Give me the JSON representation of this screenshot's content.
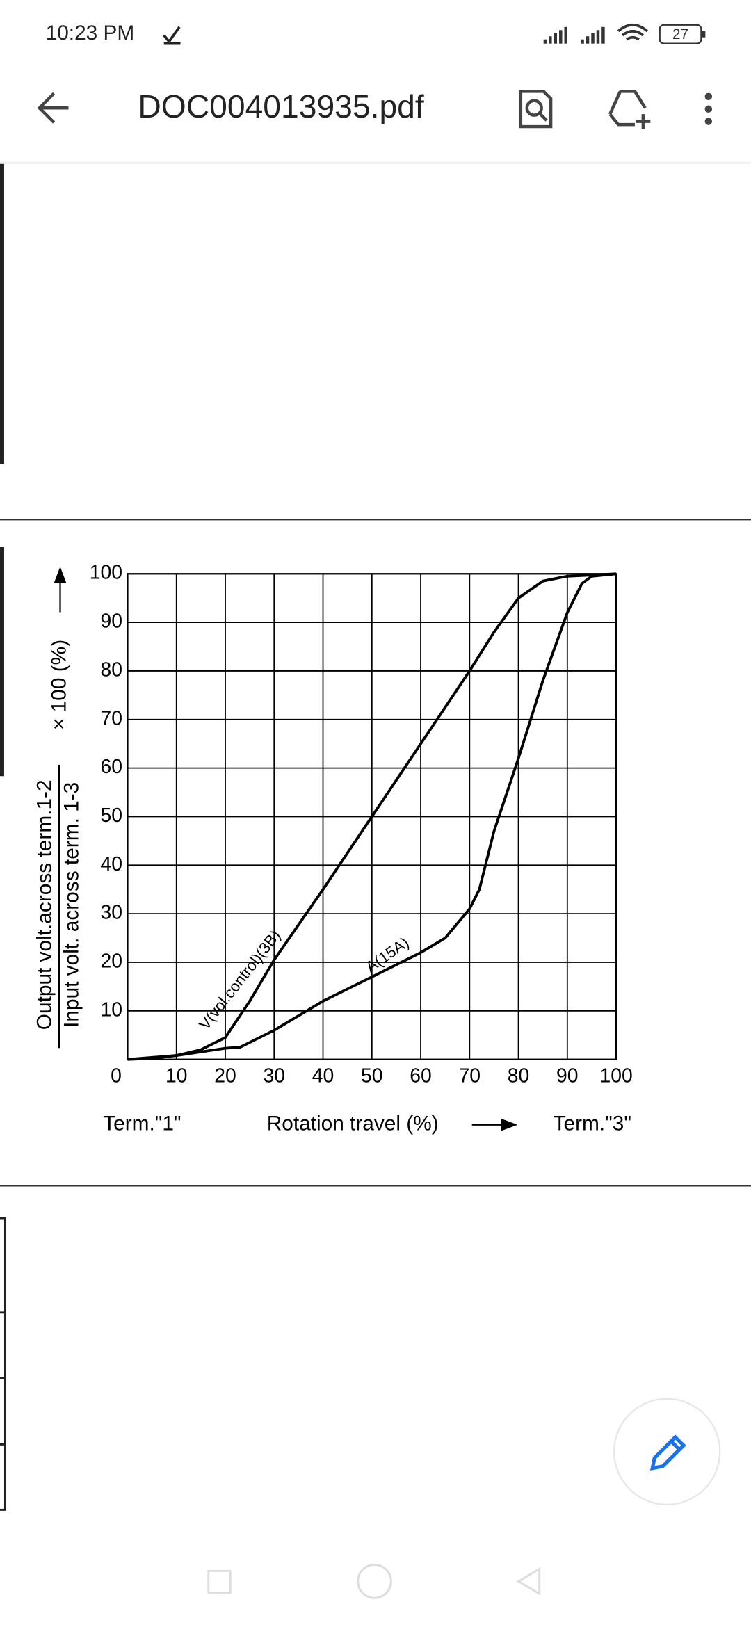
{
  "status_bar": {
    "time": "10:23 PM",
    "battery": "27"
  },
  "app_bar": {
    "title": "DOC004013935.pdf"
  },
  "chart_data": {
    "type": "line",
    "y_label": {
      "numerator": "Output volt.across term.1-2",
      "denominator": "Input volt. across term. 1-3",
      "factor": "× 100 (%)"
    },
    "x_label": "Rotation travel (%)",
    "x_start_label": "Term.\"1\"",
    "x_end_label": "Term.\"3\"",
    "xlim": [
      0,
      100
    ],
    "xticks": [
      0,
      10,
      20,
      30,
      40,
      50,
      60,
      70,
      80,
      90,
      100
    ],
    "ylim": [
      0,
      100
    ],
    "yticks": [
      10,
      20,
      30,
      40,
      50,
      60,
      70,
      80,
      90,
      100
    ],
    "grid": true,
    "series": [
      {
        "name": "V(vol.control)(3B)",
        "color": "#000000",
        "x": [
          0,
          5,
          10,
          15,
          20,
          25,
          30,
          40,
          50,
          60,
          70,
          75,
          80,
          85,
          90,
          100
        ],
        "values": [
          0,
          0.2,
          0.8,
          2,
          4.5,
          12,
          20.5,
          35,
          50,
          65,
          80,
          88,
          95,
          98.5,
          99.5,
          100
        ]
      },
      {
        "name": "A(15A)",
        "color": "#000000",
        "x": [
          0,
          10,
          20,
          23,
          30,
          40,
          50,
          60,
          65,
          70,
          72,
          75,
          80,
          85,
          90,
          93,
          95,
          100
        ],
        "values": [
          0,
          0.8,
          2.3,
          2.5,
          6,
          12,
          17,
          22,
          25,
          31,
          35,
          47,
          62,
          78,
          92,
          98,
          99.5,
          100
        ]
      }
    ]
  }
}
